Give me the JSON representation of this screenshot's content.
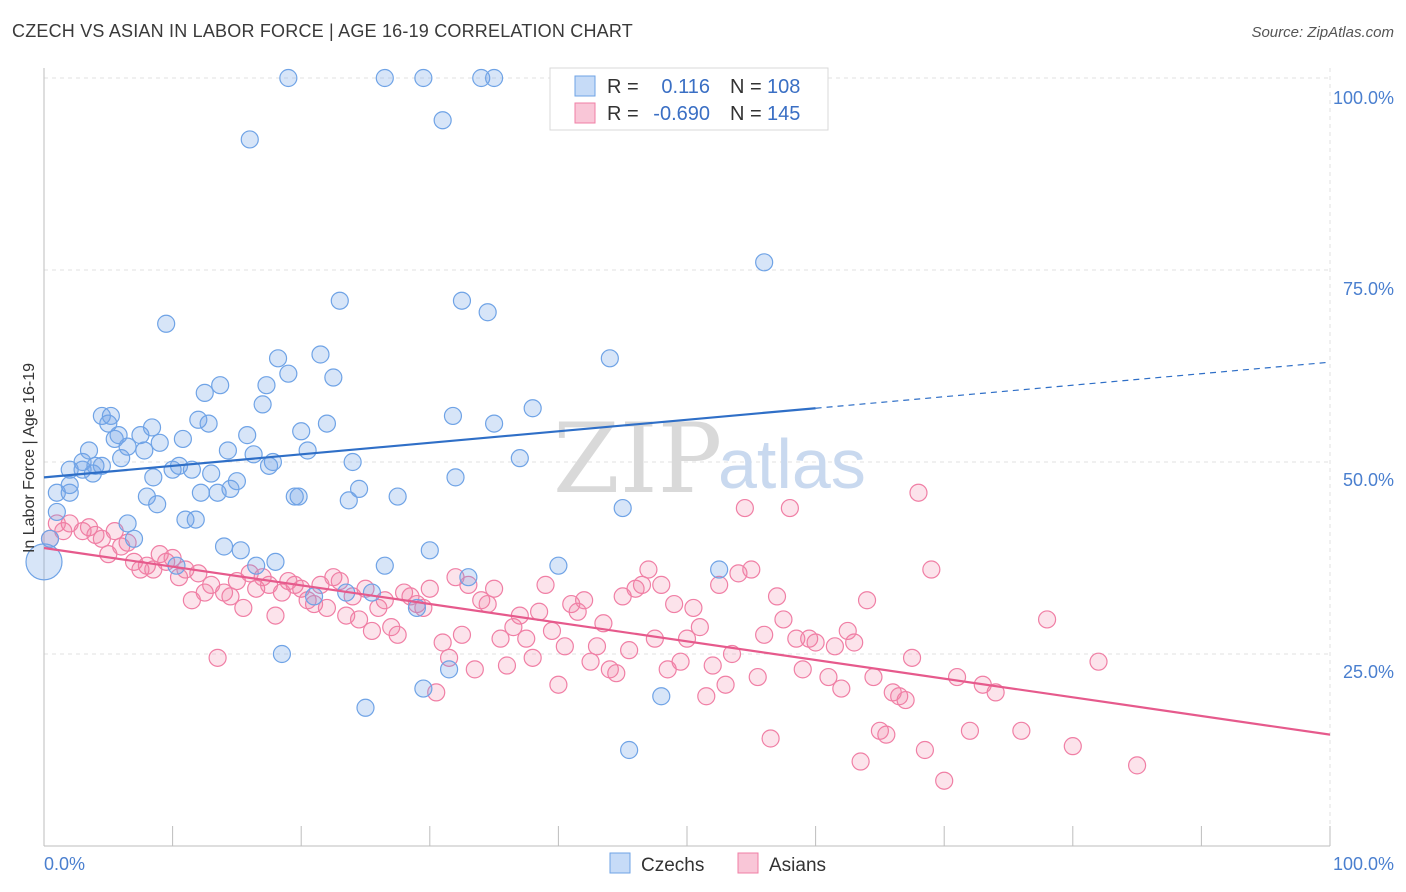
{
  "title": "CZECH VS ASIAN IN LABOR FORCE | AGE 16-19 CORRELATION CHART",
  "source": "Source: ZipAtlas.com",
  "watermark": {
    "zip": "ZIP",
    "atlas": "atlas"
  },
  "legend_top": {
    "rows": [
      {
        "r_label": "R =",
        "r_value": "0.116",
        "n_label": "N =",
        "n_value": "108",
        "color": "#6fa3e6"
      },
      {
        "r_label": "R =",
        "r_value": "-0.690",
        "n_label": "N =",
        "n_value": "145",
        "color": "#f07fa5"
      }
    ]
  },
  "legend_bottom": [
    {
      "label": "Czechs",
      "color": "#6fa3e6"
    },
    {
      "label": "Asians",
      "color": "#f07fa5"
    }
  ],
  "chart_data": {
    "type": "scatter",
    "xlabel": "",
    "ylabel": "In Labor Force | Age 16-19",
    "x_tick_labels": [
      "0.0%",
      "100.0%"
    ],
    "y_tick_labels": [
      "100.0%",
      "75.0%",
      "50.0%",
      "25.0%"
    ],
    "xlim": [
      0,
      100
    ],
    "ylim": [
      0,
      100
    ],
    "grid": true,
    "series": [
      {
        "name": "Czechs",
        "color": "#6fa3e6",
        "trend": {
          "x0": 0,
          "y0": 48.0,
          "x1": 60,
          "y1": 57.0,
          "dash_to_x": 100,
          "dash_to_y": 63
        },
        "points": [
          [
            0,
            37
          ],
          [
            0,
            40
          ],
          [
            1,
            43.5
          ],
          [
            1,
            46
          ],
          [
            2,
            46
          ],
          [
            2,
            47
          ],
          [
            2,
            49
          ],
          [
            3,
            50
          ],
          [
            3,
            49
          ],
          [
            3.5,
            51.5
          ],
          [
            3.8,
            48.5
          ],
          [
            4,
            49.5
          ],
          [
            4.5,
            49.5
          ],
          [
            4.5,
            56
          ],
          [
            5,
            55
          ],
          [
            5.2,
            56
          ],
          [
            5.5,
            53
          ],
          [
            5.8,
            53.5
          ],
          [
            6,
            50.5
          ],
          [
            6.5,
            52
          ],
          [
            6.5,
            42
          ],
          [
            7,
            40
          ],
          [
            7.5,
            53.5
          ],
          [
            7.8,
            51.5
          ],
          [
            8,
            45.5
          ],
          [
            8.4,
            54.5
          ],
          [
            8.5,
            48
          ],
          [
            8.8,
            44.5
          ],
          [
            9,
            52.5
          ],
          [
            9.5,
            68
          ],
          [
            10,
            49
          ],
          [
            10.3,
            36.5
          ],
          [
            10.5,
            49.5
          ],
          [
            10.8,
            53
          ],
          [
            11,
            42.5
          ],
          [
            11.5,
            49
          ],
          [
            11.8,
            42.5
          ],
          [
            12,
            55.5
          ],
          [
            12.2,
            46
          ],
          [
            12.5,
            59
          ],
          [
            12.8,
            55
          ],
          [
            13,
            48.5
          ],
          [
            13.5,
            46
          ],
          [
            13.7,
            60
          ],
          [
            14,
            39
          ],
          [
            14.3,
            51.5
          ],
          [
            14.5,
            46.5
          ],
          [
            15,
            47.5
          ],
          [
            15.3,
            38.5
          ],
          [
            15.8,
            53.5
          ],
          [
            16,
            92
          ],
          [
            16.3,
            51
          ],
          [
            16.5,
            36.5
          ],
          [
            17,
            57.5
          ],
          [
            17.3,
            60
          ],
          [
            17.5,
            49.5
          ],
          [
            17.8,
            50
          ],
          [
            18,
            37
          ],
          [
            18.2,
            63.5
          ],
          [
            18.5,
            25
          ],
          [
            19,
            100
          ],
          [
            19,
            61.5
          ],
          [
            19.5,
            45.5
          ],
          [
            19.8,
            45.5
          ],
          [
            20,
            54
          ],
          [
            20.5,
            51.5
          ],
          [
            21,
            32.5
          ],
          [
            21.5,
            64
          ],
          [
            22,
            55
          ],
          [
            22.5,
            61
          ],
          [
            23,
            71
          ],
          [
            23.5,
            33
          ],
          [
            23.7,
            45
          ],
          [
            24,
            50
          ],
          [
            24.5,
            46.5
          ],
          [
            25,
            18
          ],
          [
            25.5,
            33
          ],
          [
            26.5,
            100
          ],
          [
            26.5,
            36.5
          ],
          [
            27.5,
            45.5
          ],
          [
            29.5,
            100
          ],
          [
            29,
            31
          ],
          [
            29.5,
            20.5
          ],
          [
            30,
            38.5
          ],
          [
            31,
            94.5
          ],
          [
            31.5,
            23
          ],
          [
            31.8,
            56
          ],
          [
            32,
            48
          ],
          [
            32.5,
            71
          ],
          [
            33,
            35
          ],
          [
            34,
            100
          ],
          [
            35,
            100
          ],
          [
            34.5,
            69.5
          ],
          [
            35,
            55
          ],
          [
            37,
            50.5
          ],
          [
            38,
            57
          ],
          [
            40,
            36.5
          ],
          [
            44,
            63.5
          ],
          [
            45,
            44
          ],
          [
            45.5,
            12.5
          ],
          [
            48,
            19.5
          ],
          [
            52.5,
            36
          ],
          [
            54.5,
            100
          ],
          [
            56,
            76
          ]
        ]
      },
      {
        "name": "Asians",
        "color": "#f07fa5",
        "trend": {
          "x0": 0,
          "y0": 38.8,
          "x1": 100,
          "y1": 14.5
        },
        "points": [
          [
            0,
            40
          ],
          [
            1,
            42
          ],
          [
            1.5,
            41
          ],
          [
            2,
            42
          ],
          [
            3,
            41
          ],
          [
            3.5,
            41.5
          ],
          [
            4,
            40.5
          ],
          [
            4.5,
            40
          ],
          [
            5,
            38
          ],
          [
            5.5,
            41
          ],
          [
            6,
            39
          ],
          [
            6.5,
            39.5
          ],
          [
            7,
            37
          ],
          [
            7.5,
            36
          ],
          [
            8,
            36.5
          ],
          [
            8.5,
            36
          ],
          [
            9,
            38
          ],
          [
            9.5,
            37
          ],
          [
            10,
            37.5
          ],
          [
            10.5,
            35
          ],
          [
            11,
            36
          ],
          [
            11.5,
            32
          ],
          [
            12,
            35.5
          ],
          [
            12.5,
            33
          ],
          [
            13,
            34
          ],
          [
            13.5,
            24.5
          ],
          [
            14,
            33
          ],
          [
            14.5,
            32.5
          ],
          [
            15,
            34.5
          ],
          [
            15.5,
            31
          ],
          [
            16,
            35.5
          ],
          [
            16.5,
            33.5
          ],
          [
            17,
            35
          ],
          [
            17.5,
            34
          ],
          [
            18,
            30
          ],
          [
            18.5,
            33
          ],
          [
            19,
            34.5
          ],
          [
            19.5,
            34
          ],
          [
            20,
            33.5
          ],
          [
            20.5,
            32
          ],
          [
            21,
            31.5
          ],
          [
            21.5,
            34
          ],
          [
            22,
            31
          ],
          [
            22.5,
            35
          ],
          [
            23,
            34.5
          ],
          [
            23.5,
            30
          ],
          [
            24,
            32.5
          ],
          [
            24.5,
            29.5
          ],
          [
            25,
            33.5
          ],
          [
            25.5,
            28
          ],
          [
            26,
            31
          ],
          [
            26.5,
            32
          ],
          [
            27,
            28.5
          ],
          [
            27.5,
            27.5
          ],
          [
            28,
            33
          ],
          [
            28.5,
            32.5
          ],
          [
            29,
            31.5
          ],
          [
            29.5,
            31
          ],
          [
            30,
            33.5
          ],
          [
            30.5,
            20
          ],
          [
            31,
            26.5
          ],
          [
            31.5,
            24.5
          ],
          [
            32,
            35
          ],
          [
            32.5,
            27.5
          ],
          [
            33,
            34
          ],
          [
            33.5,
            23
          ],
          [
            34,
            32
          ],
          [
            34.5,
            31.5
          ],
          [
            35,
            33.5
          ],
          [
            35.5,
            27
          ],
          [
            36,
            23.5
          ],
          [
            36.5,
            28.5
          ],
          [
            37,
            30
          ],
          [
            37.5,
            27
          ],
          [
            38,
            24.5
          ],
          [
            38.5,
            30.5
          ],
          [
            39,
            34
          ],
          [
            39.5,
            28
          ],
          [
            40,
            21
          ],
          [
            40.5,
            26
          ],
          [
            41,
            31.5
          ],
          [
            41.5,
            30.5
          ],
          [
            42,
            32
          ],
          [
            42.5,
            24
          ],
          [
            43,
            26
          ],
          [
            43.5,
            29
          ],
          [
            44,
            23
          ],
          [
            44.5,
            22.5
          ],
          [
            45,
            32.5
          ],
          [
            45.5,
            25.5
          ],
          [
            46,
            33.5
          ],
          [
            46.5,
            34
          ],
          [
            47,
            36
          ],
          [
            47.5,
            27
          ],
          [
            48,
            34
          ],
          [
            48.5,
            23
          ],
          [
            49,
            31.5
          ],
          [
            49.5,
            24
          ],
          [
            50,
            27
          ],
          [
            50.5,
            31
          ],
          [
            51,
            28.5
          ],
          [
            51.5,
            19.5
          ],
          [
            52,
            23.5
          ],
          [
            52.5,
            34
          ],
          [
            53,
            21
          ],
          [
            53.5,
            25
          ],
          [
            54,
            35.5
          ],
          [
            54.5,
            44
          ],
          [
            55,
            36
          ],
          [
            55.5,
            22
          ],
          [
            56,
            27.5
          ],
          [
            56.5,
            14
          ],
          [
            57,
            32.5
          ],
          [
            57.5,
            29.5
          ],
          [
            58,
            44
          ],
          [
            58.5,
            27
          ],
          [
            59,
            23
          ],
          [
            59.5,
            27
          ],
          [
            60,
            26.5
          ],
          [
            61,
            22
          ],
          [
            61.5,
            26
          ],
          [
            62,
            20.5
          ],
          [
            62.5,
            28
          ],
          [
            63,
            26.5
          ],
          [
            63.5,
            11
          ],
          [
            64,
            32
          ],
          [
            64.5,
            22
          ],
          [
            65,
            15
          ],
          [
            65.5,
            14.5
          ],
          [
            66,
            20
          ],
          [
            66.5,
            19.5
          ],
          [
            67,
            19
          ],
          [
            67.5,
            24.5
          ],
          [
            68,
            46
          ],
          [
            68.5,
            12.5
          ],
          [
            69,
            36
          ],
          [
            70,
            8.5
          ],
          [
            71,
            22
          ],
          [
            72,
            15
          ],
          [
            73,
            21
          ],
          [
            74,
            20
          ],
          [
            76,
            15
          ],
          [
            78,
            29.5
          ],
          [
            80,
            13
          ],
          [
            82,
            24
          ],
          [
            85,
            10.5
          ]
        ]
      }
    ]
  }
}
